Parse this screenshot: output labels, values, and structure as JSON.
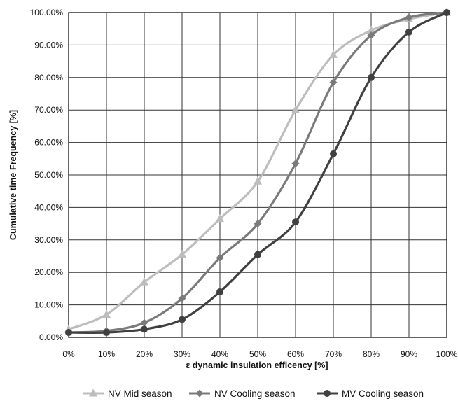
{
  "chart_data": {
    "type": "line",
    "xlabel": "ε dynamic insulation efficency  [%]",
    "ylabel": "Cumulative  time Frequency [%]",
    "x": [
      0,
      10,
      20,
      30,
      40,
      50,
      60,
      70,
      80,
      90,
      100
    ],
    "x_tick_labels": [
      "0%",
      "10%",
      "20%",
      "30%",
      "40%",
      "50%",
      "60%",
      "70%",
      "80%",
      "90%",
      "100%"
    ],
    "y_tick_labels": [
      "0.00%",
      "10.00%",
      "20.00%",
      "30.00%",
      "40.00%",
      "50.00%",
      "60.00%",
      "70.00%",
      "80.00%",
      "90.00%",
      "100.00%"
    ],
    "xlim": [
      0,
      100
    ],
    "ylim": [
      0,
      100
    ],
    "grid": true,
    "legend_position": "bottom",
    "series": [
      {
        "name": "NV Mid season",
        "marker": "triangle",
        "color": "#bdbdbd",
        "values": [
          2.5,
          7.0,
          17.0,
          25.5,
          36.5,
          48.0,
          70.0,
          87.0,
          94.5,
          98.0,
          100.0
        ]
      },
      {
        "name": "NV Cooling season",
        "marker": "diamond",
        "color": "#7a7a7a",
        "values": [
          1.5,
          2.0,
          4.5,
          12.0,
          24.5,
          35.0,
          53.5,
          78.5,
          93.0,
          98.5,
          100.0
        ]
      },
      {
        "name": "MV Cooling season",
        "marker": "circle",
        "color": "#404040",
        "values": [
          1.5,
          1.5,
          2.5,
          5.5,
          14.0,
          25.5,
          35.5,
          56.5,
          80.0,
          94.0,
          100.0
        ]
      }
    ]
  }
}
